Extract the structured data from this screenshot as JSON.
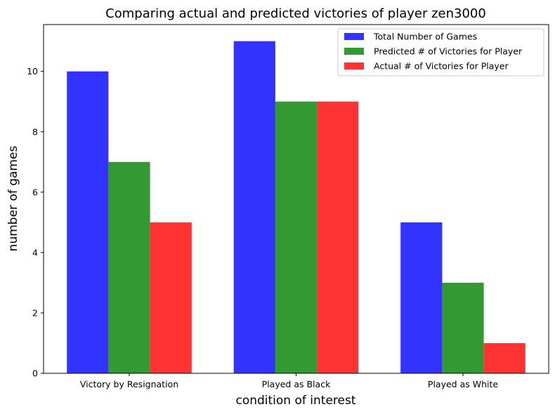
{
  "chart_data": {
    "type": "bar",
    "title": "Comparing actual and predicted victories of player zen3000",
    "xlabel": "condition of interest",
    "ylabel": "number of games",
    "categories": [
      "Victory by Resignation",
      "Played as Black",
      "Played as White"
    ],
    "series": [
      {
        "name": "Total Number of Games",
        "values": [
          10,
          11,
          5
        ],
        "color": "#3333ff"
      },
      {
        "name": "Predicted # of Victories for Player",
        "values": [
          7,
          9,
          3
        ],
        "color": "#339933"
      },
      {
        "name": "Actual # of Victories for Player",
        "values": [
          5,
          9,
          1
        ],
        "color": "#ff3333"
      }
    ],
    "ylim": [
      0,
      11.55
    ],
    "yticks": [
      "0",
      "2",
      "4",
      "6",
      "8",
      "10"
    ],
    "grid": false,
    "legend_position": "top-right"
  }
}
